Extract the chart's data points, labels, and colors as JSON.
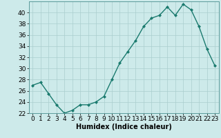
{
  "x": [
    0,
    1,
    2,
    3,
    4,
    5,
    6,
    7,
    8,
    9,
    10,
    11,
    12,
    13,
    14,
    15,
    16,
    17,
    18,
    19,
    20,
    21,
    22,
    23
  ],
  "y": [
    27,
    27.5,
    25.5,
    23.5,
    22,
    22.5,
    23.5,
    23.5,
    24,
    25,
    28,
    31,
    33,
    35,
    37.5,
    39,
    39.5,
    41,
    39.5,
    41.5,
    40.5,
    37.5,
    33.5,
    30.5
  ],
  "line_color": "#1a7a6e",
  "marker": "D",
  "marker_size": 2.0,
  "background_color": "#cdeaea",
  "grid_color": "#aacece",
  "xlabel": "Humidex (Indice chaleur)",
  "ylim": [
    22,
    42
  ],
  "xlim": [
    -0.5,
    23.5
  ],
  "yticks": [
    22,
    24,
    26,
    28,
    30,
    32,
    34,
    36,
    38,
    40
  ],
  "xticks": [
    0,
    1,
    2,
    3,
    4,
    5,
    6,
    7,
    8,
    9,
    10,
    11,
    12,
    13,
    14,
    15,
    16,
    17,
    18,
    19,
    20,
    21,
    22,
    23
  ],
  "xlabel_fontsize": 7,
  "tick_fontsize": 6.5,
  "line_width": 1.0
}
